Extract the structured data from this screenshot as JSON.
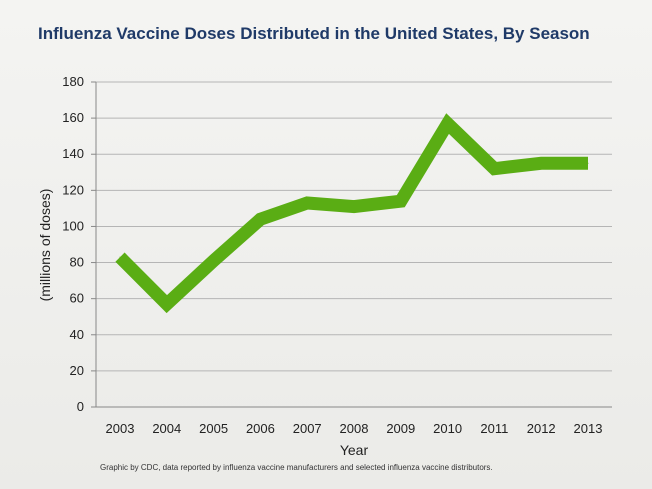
{
  "title": "Influenza Vaccine Doses Distributed in the United States, By Season",
  "footnote": "Graphic by CDC, data reported by influenza vaccine manufacturers and selected influenza vaccine distributors.",
  "colors": {
    "line": "#5aad14",
    "grid": "#b5b5b5",
    "axis": "#888888"
  },
  "chart_data": {
    "type": "line",
    "x": [
      "2003",
      "2004",
      "2005",
      "2006",
      "2007",
      "2008",
      "2009",
      "2010",
      "2011",
      "2012",
      "2013"
    ],
    "series": [
      {
        "values": [
          83,
          57,
          81,
          104,
          113,
          111,
          114,
          157,
          132,
          135,
          135
        ]
      }
    ],
    "xlabel": "Year",
    "ylabel": "(millions of doses)",
    "ylim": [
      0,
      180
    ],
    "yticks": [
      0,
      20,
      40,
      60,
      80,
      100,
      120,
      140,
      160,
      180
    ],
    "grid": true,
    "legend": "none"
  }
}
